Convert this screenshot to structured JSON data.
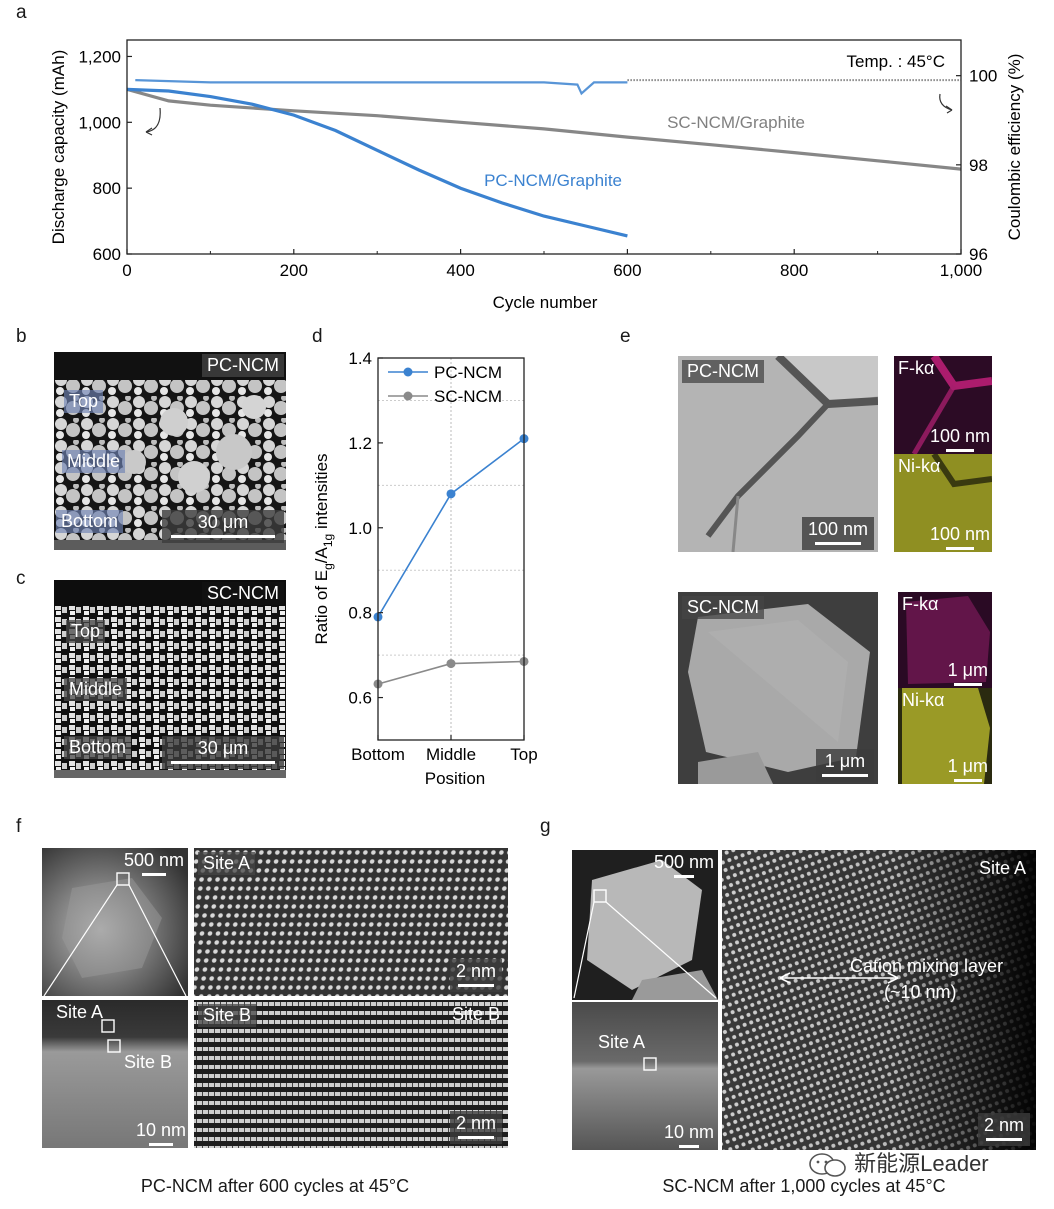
{
  "panels": {
    "a": "a",
    "b": "b",
    "c": "c",
    "d": "d",
    "e": "e",
    "f": "f",
    "g": "g"
  },
  "panel_a": {
    "temp_label": "Temp. : 45°C",
    "series_labels": {
      "sc": "SC-NCM/Graphite",
      "pc": "PC-NCM/Graphite"
    },
    "colors": {
      "pc": "#3b82d0",
      "sc": "#878787"
    }
  },
  "panel_d": {
    "legend": [
      "PC-NCM",
      "SC-NCM"
    ],
    "colors": {
      "pc": "#3b82d0",
      "sc": "#8a8a8a"
    }
  },
  "panel_b": {
    "tag": "PC-NCM",
    "layers": [
      "Top",
      "Middle",
      "Bottom"
    ],
    "scale": "30 μm"
  },
  "panel_c": {
    "tag": "SC-NCM",
    "layers": [
      "Top",
      "Middle",
      "Bottom"
    ],
    "scale": "30 μm"
  },
  "panel_e": {
    "pc": {
      "tag": "PC-NCM",
      "scale": "100 nm",
      "f_label": "F-kα",
      "f_scale": "100 nm",
      "ni_label": "Ni-kα",
      "ni_scale": "100 nm"
    },
    "sc": {
      "tag": "SC-NCM",
      "scale": "1 μm",
      "f_label": "F-kα",
      "f_scale": "1 μm",
      "ni_label": "Ni-kα",
      "ni_scale": "1 μm"
    }
  },
  "panel_f": {
    "overview_scale": "500 nm",
    "site_a": "Site A",
    "site_a_scale": "2 nm",
    "inset_site_a": "Site A",
    "inset_site_b": "Site B",
    "inset_scale": "10 nm",
    "site_b": "Site B",
    "site_b_tag2": "Site B",
    "site_b_scale": "2 nm",
    "caption": "PC-NCM after 600 cycles at 45°C"
  },
  "panel_g": {
    "overview_scale": "500 nm",
    "inset_site_a": "Site A",
    "inset_scale": "10 nm",
    "site_a": "Site A",
    "mixing_label": "Cation mixing layer",
    "mixing_size": "(~10 nm)",
    "hr_scale": "2 nm",
    "caption": "SC-NCM after 1,000 cycles at 45°C"
  },
  "watermark": "新能源Leader",
  "chart_data": [
    {
      "type": "line",
      "xlabel": "Cycle number",
      "ylabel": "Discharge capacity (mAh)",
      "y2label": "Coulombic efficiency (%)",
      "xlim": [
        0,
        1000
      ],
      "ylim": [
        600,
        1250
      ],
      "y2lim": [
        96,
        100.8
      ],
      "xticks": [
        0,
        200,
        400,
        600,
        800,
        1000
      ],
      "xtick_labels": [
        "0",
        "200",
        "400",
        "600",
        "800",
        "1,000"
      ],
      "yticks": [
        600,
        800,
        1000,
        1200
      ],
      "ytick_labels": [
        "600",
        "800",
        "1,000",
        "1,200"
      ],
      "y2ticks": [
        96,
        98,
        100
      ],
      "y2tick_labels": [
        "96",
        "98",
        "100"
      ],
      "series": [
        {
          "name": "PC-NCM/Graphite",
          "axis": "left",
          "x": [
            0,
            50,
            100,
            150,
            200,
            250,
            300,
            350,
            400,
            450,
            500,
            550,
            600
          ],
          "y": [
            1100,
            1095,
            1078,
            1055,
            1022,
            975,
            915,
            855,
            800,
            755,
            715,
            685,
            655
          ]
        },
        {
          "name": "SC-NCM/Graphite",
          "axis": "left",
          "x": [
            0,
            50,
            100,
            200,
            300,
            400,
            500,
            600,
            700,
            800,
            900,
            1000
          ],
          "y": [
            1100,
            1065,
            1052,
            1035,
            1020,
            1000,
            980,
            955,
            932,
            908,
            883,
            858
          ]
        },
        {
          "name": "PC-NCM CE",
          "axis": "right",
          "x": [
            10,
            100,
            200,
            300,
            400,
            500,
            540,
            545,
            560,
            600
          ],
          "y": [
            99.9,
            99.85,
            99.85,
            99.85,
            99.85,
            99.85,
            99.8,
            99.6,
            99.85,
            99.85
          ]
        },
        {
          "name": "SC-NCM CE",
          "axis": "right",
          "x": [
            600,
            700,
            800,
            900,
            1000
          ],
          "y": [
            99.9,
            99.9,
            99.9,
            99.9,
            99.9
          ]
        }
      ]
    },
    {
      "type": "line",
      "xlabel": "Position",
      "ylabel": "Ratio of Eg/A1g intensities",
      "ylabel_parts": {
        "pre": "Ratio of E",
        "sub1": "g",
        "mid": "/A",
        "sub2": "1g",
        "post": " intensities"
      },
      "categories": [
        "Bottom",
        "Middle",
        "Top"
      ],
      "ylim": [
        0.5,
        1.4
      ],
      "yticks": [
        0.6,
        0.8,
        1.0,
        1.2,
        1.4
      ],
      "ytick_labels": [
        "0.6",
        "0.8",
        "1.0",
        "1.2",
        "1.4"
      ],
      "series": [
        {
          "name": "PC-NCM",
          "values": [
            0.79,
            1.08,
            1.21
          ]
        },
        {
          "name": "SC-NCM",
          "values": [
            0.632,
            0.68,
            0.685
          ]
        }
      ]
    }
  ]
}
